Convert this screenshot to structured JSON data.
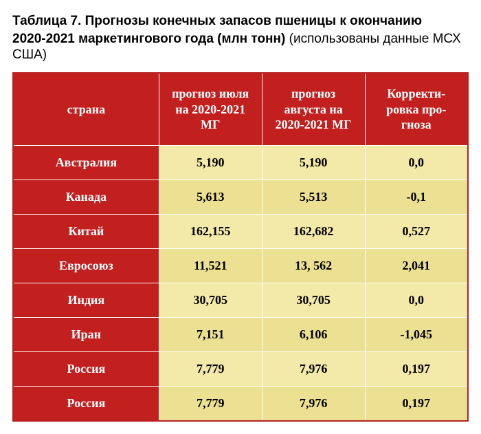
{
  "title": {
    "bold_line1": "Таблица 7. Прогнозы конечных запасов пшеницы к окончанию",
    "bold_line2_prefix": "2020-2021 маркетингового года (млн тонн)",
    "regular_suffix": " (использованы данные МСХ США)"
  },
  "table": {
    "columns": [
      "страна",
      "прогноз июля на 2020-2021 МГ",
      "прогноз августа на 2020-2021 МГ",
      "Корректи-\nровка про-\nгноза"
    ],
    "rows": [
      {
        "country": "Австралия",
        "july": "5,190",
        "august": "5,190",
        "adj": "0,0"
      },
      {
        "country": "Канада",
        "july": "5,613",
        "august": "5,513",
        "adj": "-0,1"
      },
      {
        "country": "Китай",
        "july": "162,155",
        "august": "162,682",
        "adj": "0,527"
      },
      {
        "country": "Евросоюз",
        "july": "11,521",
        "august": "13, 562",
        "adj": "2,041"
      },
      {
        "country": "Индия",
        "july": "30,705",
        "august": "30,705",
        "adj": "0,0"
      },
      {
        "country": "Иран",
        "july": "7,151",
        "august": "6,106",
        "adj": "-1,045"
      },
      {
        "country": "Россия",
        "july": "7,779",
        "august": "7,976",
        "adj": "0,197"
      },
      {
        "country": "Россия",
        "july": "7,779",
        "august": "7,976",
        "adj": "0,197"
      }
    ],
    "styling": {
      "header_bg": "#c21f1f",
      "header_fg": "#ffffff",
      "country_cell_bg": "#c21f1f",
      "country_cell_fg": "#ffffff",
      "row_even_bg": "#f3e9a8",
      "row_odd_bg": "#ece092",
      "data_fg": "#000000",
      "border_color_inner": "#ffffff",
      "border_color_outer": "#b52020",
      "header_font": "Times New Roman serif bold",
      "header_fontsize_pt": 18,
      "body_font": "Times New Roman serif bold",
      "body_fontsize_pt": 18,
      "title_font": "Arial sans-serif",
      "title_fontsize_pt": 19
    }
  }
}
